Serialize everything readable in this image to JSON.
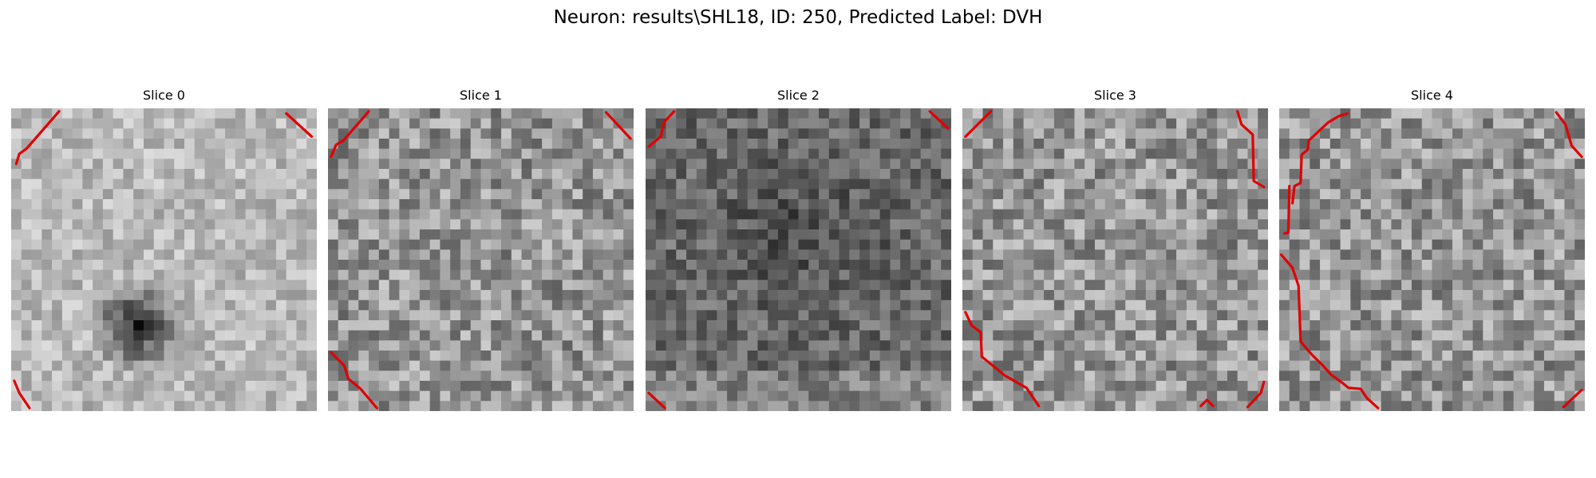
{
  "figure": {
    "title": "Neuron: results\\SHL18, ID: 250, Predicted Label: DVH",
    "contour_color": "#e00000"
  },
  "panels": [
    {
      "title": "Slice 0",
      "tone": "light",
      "dark_spot": true
    },
    {
      "title": "Slice 1",
      "tone": "mixed",
      "dark_spot": false
    },
    {
      "title": "Slice 2",
      "tone": "dark",
      "dark_spot": false
    },
    {
      "title": "Slice 3",
      "tone": "mixed",
      "dark_spot": false
    },
    {
      "title": "Slice 4",
      "tone": "mixed",
      "dark_spot": false
    }
  ]
}
